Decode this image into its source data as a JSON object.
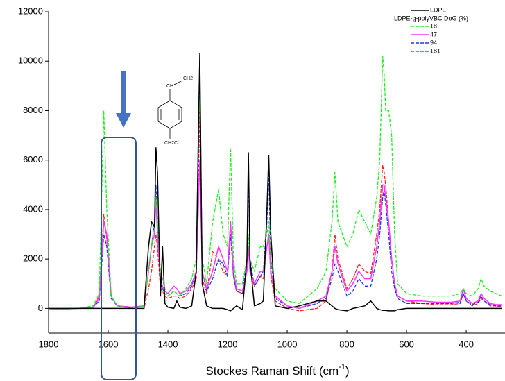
{
  "chart_data": {
    "type": "line",
    "xlabel": "Stockes Raman Shift (cm",
    "xlabel_sup": "-1",
    "xlabel_end": ")",
    "legend_subheading": "LDPE-g-polyVBC DoG (%)",
    "molecule_labels": [
      "CH",
      "CH2",
      "CH2Cl"
    ],
    "legend": "upper right",
    "x": [
      1800,
      1700,
      1650,
      1630,
      1615,
      1605,
      1590,
      1570,
      1520,
      1480,
      1465,
      1455,
      1445,
      1440,
      1435,
      1425,
      1418,
      1410,
      1400,
      1380,
      1370,
      1360,
      1340,
      1320,
      1305,
      1298,
      1293,
      1285,
      1270,
      1250,
      1230,
      1215,
      1200,
      1190,
      1180,
      1170,
      1150,
      1135,
      1130,
      1125,
      1110,
      1090,
      1080,
      1068,
      1062,
      1055,
      1040,
      1000,
      960,
      900,
      870,
      850,
      840,
      830,
      800,
      780,
      760,
      740,
      720,
      700,
      690,
      680,
      675,
      670,
      660,
      650,
      640,
      630,
      600,
      550,
      500,
      450,
      420,
      410,
      400,
      380,
      360,
      350,
      340,
      320,
      300,
      280
    ],
    "series": [
      {
        "name": "LDPE",
        "color": "#000000",
        "style": "solid",
        "values": [
          0,
          0,
          0,
          0,
          0,
          0,
          0,
          0,
          0,
          0,
          2500,
          3500,
          3300,
          6500,
          5500,
          500,
          2500,
          200,
          50,
          0,
          300,
          50,
          0,
          100,
          1500,
          7000,
          10300,
          1000,
          100,
          0,
          0,
          0,
          -50,
          -100,
          0,
          100,
          -50,
          2000,
          6300,
          2000,
          100,
          200,
          300,
          4000,
          6200,
          3000,
          100,
          0,
          100,
          300,
          300,
          100,
          0,
          -50,
          -100,
          0,
          50,
          100,
          300,
          0,
          -50,
          -80,
          -80,
          -80,
          -100,
          -100,
          -100,
          -50,
          0,
          0,
          0,
          0,
          0,
          0,
          0,
          0,
          0,
          0,
          0,
          0,
          0,
          0
        ]
      },
      {
        "name": "18",
        "color": "#22ee22",
        "style": "dashed",
        "values": [
          -50,
          0,
          100,
          600,
          8000,
          4000,
          500,
          100,
          0,
          100,
          1500,
          2500,
          3500,
          4500,
          3500,
          1500,
          1200,
          800,
          500,
          700,
          600,
          500,
          800,
          1200,
          2000,
          7000,
          8500,
          2000,
          1000,
          3500,
          4800,
          3000,
          2500,
          6500,
          2000,
          1000,
          1000,
          2000,
          3000,
          2000,
          1500,
          2500,
          2500,
          3000,
          3500,
          2000,
          800,
          300,
          200,
          800,
          1500,
          3500,
          5500,
          3500,
          2500,
          3000,
          4000,
          3500,
          3000,
          4500,
          6000,
          10200,
          9500,
          8000,
          8000,
          7000,
          3000,
          1000,
          600,
          500,
          500,
          500,
          600,
          800,
          600,
          500,
          800,
          1200,
          900,
          700,
          600,
          500
        ]
      },
      {
        "name": "47",
        "color": "#ff33ff",
        "style": "solid",
        "values": [
          -50,
          0,
          50,
          400,
          3500,
          3000,
          500,
          100,
          50,
          100,
          1500,
          2500,
          3000,
          4400,
          3000,
          1200,
          900,
          700,
          600,
          900,
          800,
          600,
          700,
          1000,
          1500,
          4000,
          6000,
          1500,
          800,
          1500,
          2500,
          2000,
          1500,
          3500,
          1500,
          800,
          700,
          1500,
          2500,
          1500,
          1000,
          1500,
          1500,
          2500,
          3000,
          1500,
          500,
          100,
          0,
          300,
          500,
          1500,
          2500,
          1800,
          700,
          1000,
          1500,
          1200,
          1200,
          2500,
          3500,
          5000,
          5000,
          4500,
          3500,
          2000,
          1000,
          500,
          300,
          300,
          250,
          250,
          300,
          800,
          400,
          200,
          300,
          600,
          400,
          200,
          150,
          150
        ]
      },
      {
        "name": "94",
        "color": "#2233ee",
        "style": "dashed",
        "values": [
          -50,
          0,
          50,
          300,
          3000,
          2500,
          400,
          100,
          50,
          100,
          1500,
          2500,
          3500,
          5000,
          3500,
          1000,
          800,
          600,
          500,
          700,
          600,
          500,
          600,
          900,
          1500,
          6000,
          10000,
          1500,
          700,
          1200,
          2000,
          1800,
          1300,
          3000,
          1300,
          700,
          600,
          2000,
          5500,
          2000,
          900,
          1300,
          1500,
          3500,
          5500,
          2000,
          400,
          100,
          0,
          200,
          400,
          1200,
          1800,
          1500,
          500,
          700,
          1200,
          900,
          900,
          2000,
          3000,
          4500,
          4800,
          4200,
          3000,
          1500,
          800,
          400,
          200,
          200,
          200,
          200,
          250,
          600,
          300,
          150,
          250,
          500,
          300,
          150,
          100,
          100
        ]
      },
      {
        "name": "181",
        "color": "#ff2222",
        "style": "dashed",
        "values": [
          -50,
          0,
          50,
          500,
          3800,
          2800,
          500,
          100,
          0,
          0,
          800,
          1500,
          2500,
          3000,
          2500,
          800,
          700,
          500,
          400,
          500,
          500,
          400,
          500,
          800,
          1200,
          5000,
          8000,
          1200,
          600,
          2300,
          2000,
          1500,
          1300,
          3500,
          1300,
          700,
          600,
          1500,
          2500,
          1500,
          900,
          1300,
          1200,
          2500,
          3000,
          1300,
          300,
          0,
          -100,
          0,
          300,
          1500,
          3000,
          2000,
          800,
          1200,
          1800,
          1500,
          1400,
          3000,
          4000,
          5800,
          5500,
          5000,
          3500,
          2000,
          1000,
          500,
          300,
          200,
          150,
          150,
          200,
          600,
          300,
          100,
          200,
          400,
          300,
          100,
          100,
          50
        ]
      }
    ],
    "xlim": [
      1800,
      270
    ],
    "xticks": [
      1800,
      1600,
      1400,
      1200,
      1000,
      800,
      600,
      400
    ],
    "ylim": [
      -1000,
      12000
    ],
    "yticks": [
      0,
      2000,
      4000,
      6000,
      8000,
      10000,
      12000
    ]
  }
}
